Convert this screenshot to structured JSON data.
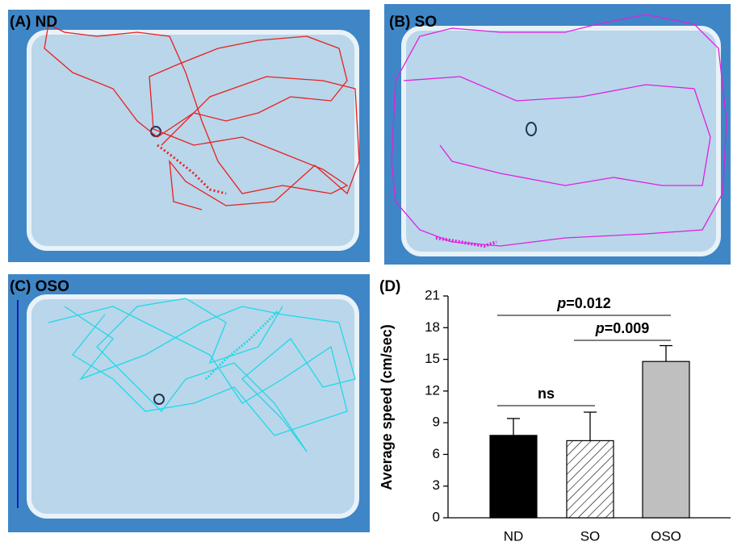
{
  "panels": [
    {
      "label": "(A) ND"
    },
    {
      "label": "(B) SO"
    },
    {
      "label": "(C) OSO"
    },
    {
      "label": "(D)"
    }
  ],
  "chart_data": {
    "type": "bar",
    "ylabel": "Average speed (cm/sec)",
    "categories": [
      "ND",
      "SO",
      "OSO"
    ],
    "values": [
      7.8,
      7.3,
      14.8
    ],
    "errors": [
      1.6,
      2.7,
      1.5
    ],
    "colors": [
      "#000000",
      "#ffffff",
      "#bfbfbf"
    ],
    "hatch": [
      false,
      true,
      false
    ],
    "ylim": [
      0,
      21
    ],
    "yticks": [
      0,
      3,
      6,
      9,
      12,
      15,
      18,
      21
    ],
    "comparisons": [
      {
        "between": [
          "ND",
          "OSO"
        ],
        "label": "p=0.012"
      },
      {
        "between": [
          "SO",
          "OSO"
        ],
        "label": "p=0.009"
      },
      {
        "between": [
          "ND",
          "SO"
        ],
        "label": "ns"
      }
    ]
  }
}
